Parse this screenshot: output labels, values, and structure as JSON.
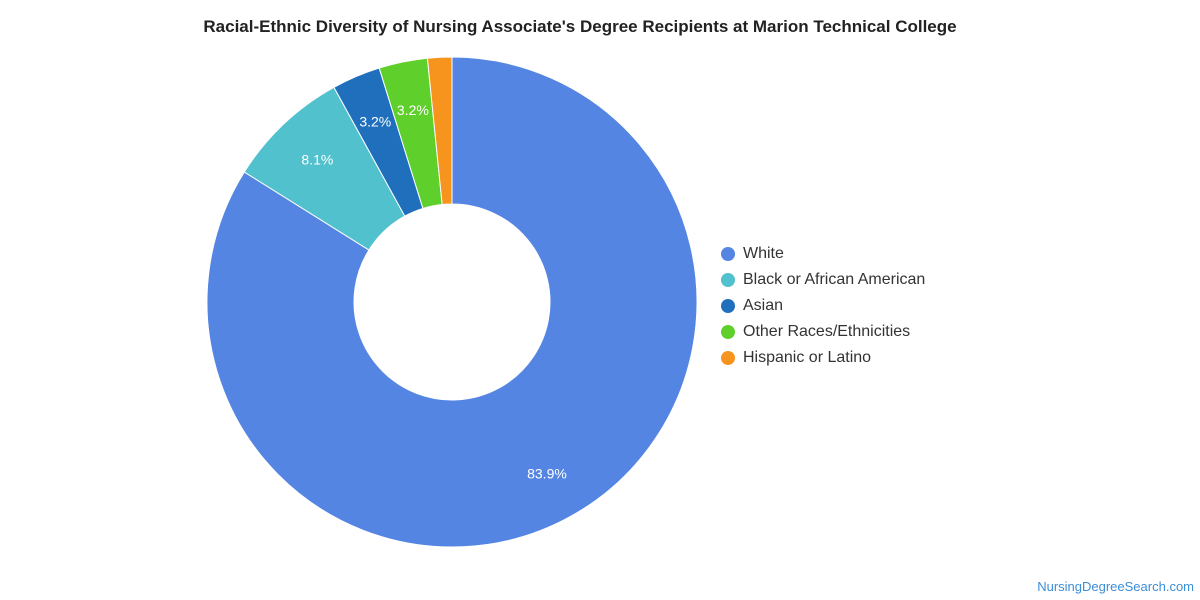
{
  "chart_data": {
    "type": "pie",
    "donut": true,
    "title": "Racial-Ethnic Diversity of Nursing Associate's Degree Recipients at Marion Technical College",
    "slices": [
      {
        "name": "White",
        "value": 83.9,
        "label": "83.9%",
        "color": "#5585e3"
      },
      {
        "name": "Black or African American",
        "value": 8.1,
        "label": "8.1%",
        "color": "#52c1ce"
      },
      {
        "name": "Asian",
        "value": 3.2,
        "label": "3.2%",
        "color": "#1f6fbd"
      },
      {
        "name": "Other Races/Ethnicities",
        "value": 3.2,
        "label": "3.2%",
        "color": "#5fcf2c"
      },
      {
        "name": "Hispanic or Latino",
        "value": 1.6,
        "label": "",
        "color": "#f7941d"
      }
    ],
    "legend_position": "right"
  },
  "source": {
    "text": "NursingDegreeSearch.com",
    "color": "#3b8ed8"
  }
}
